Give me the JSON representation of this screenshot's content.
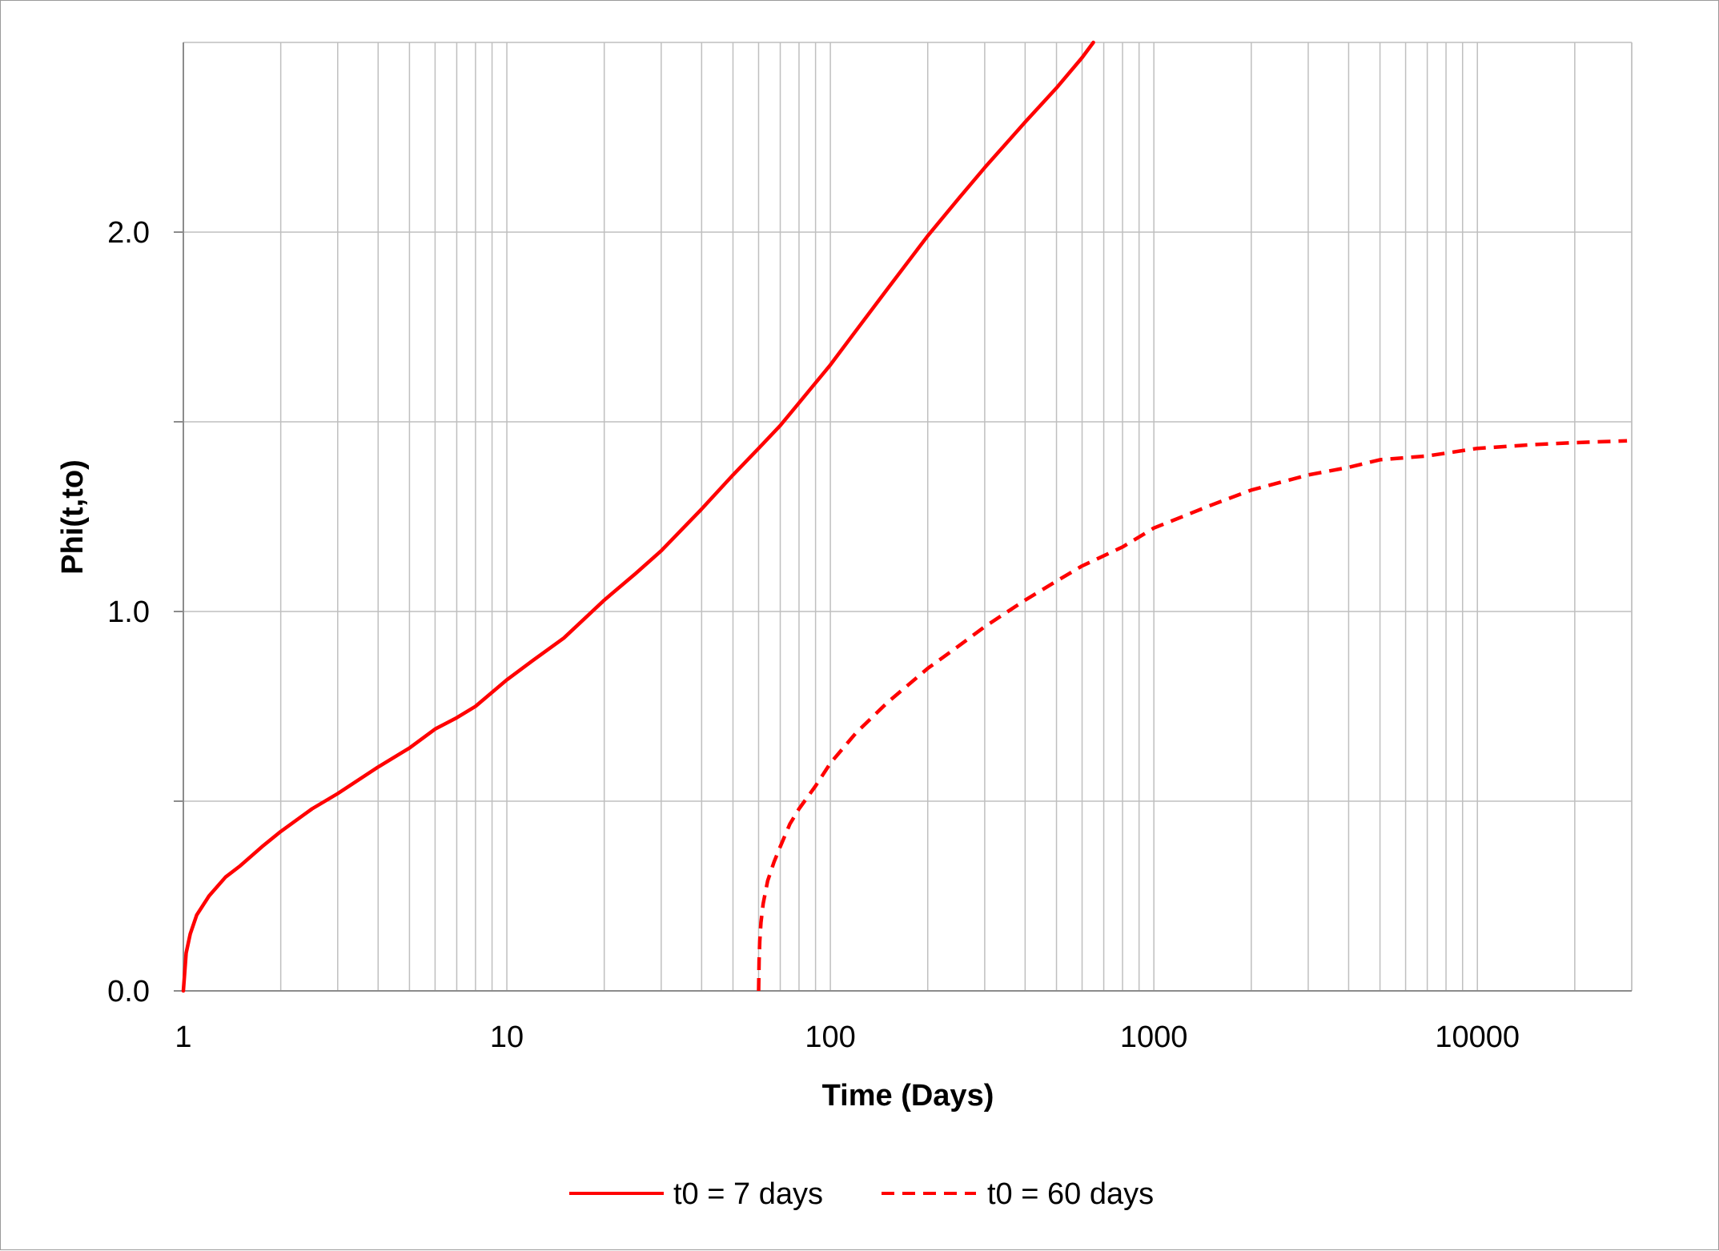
{
  "chart_data": {
    "type": "line",
    "title": "",
    "xlabel": "Time (Days)",
    "ylabel": "Phi(t,to)",
    "x_scale": "log",
    "xlim": [
      1,
      30000
    ],
    "ylim": [
      0,
      2.5
    ],
    "x_ticks": [
      1,
      10,
      100,
      1000,
      10000
    ],
    "x_tick_labels": [
      "1",
      "10",
      "100",
      "1000",
      "10000"
    ],
    "y_ticks": [
      0,
      0.5,
      1.0,
      1.5,
      2.0
    ],
    "y_tick_labels": [
      "0.0",
      "",
      "1.0",
      "",
      "2.0"
    ],
    "grid": true,
    "legend_position": "bottom",
    "colors": {
      "series": "#ff0000",
      "grid": "#bfbfbf",
      "axis": "#8c8c8c"
    },
    "series": [
      {
        "name": "t0 = 7 days",
        "line_style": "solid",
        "x": [
          1.0,
          1.02,
          1.05,
          1.1,
          1.2,
          1.35,
          1.5,
          1.75,
          2,
          2.5,
          3,
          4,
          5,
          6,
          7,
          8,
          10,
          12,
          15,
          20,
          25,
          30,
          40,
          50,
          60,
          70,
          80,
          100,
          120,
          150,
          200,
          250,
          300,
          400,
          500,
          600,
          650
        ],
        "y": [
          0.0,
          0.1,
          0.15,
          0.2,
          0.25,
          0.3,
          0.33,
          0.38,
          0.42,
          0.48,
          0.52,
          0.59,
          0.64,
          0.69,
          0.72,
          0.75,
          0.82,
          0.87,
          0.93,
          1.03,
          1.1,
          1.16,
          1.27,
          1.36,
          1.43,
          1.49,
          1.55,
          1.65,
          1.74,
          1.85,
          1.99,
          2.09,
          2.17,
          2.29,
          2.38,
          2.46,
          2.5
        ]
      },
      {
        "name": "t0 = 60 days",
        "line_style": "dashed",
        "x": [
          60,
          60.2,
          60.5,
          61,
          62,
          64,
          67,
          70,
          75,
          80,
          90,
          100,
          120,
          150,
          200,
          250,
          300,
          400,
          500,
          600,
          800,
          1000,
          1500,
          2000,
          3000,
          4000,
          5000,
          7000,
          10000,
          15000,
          20000,
          29000
        ],
        "y": [
          0.0,
          0.08,
          0.13,
          0.18,
          0.23,
          0.29,
          0.34,
          0.38,
          0.44,
          0.48,
          0.54,
          0.6,
          0.68,
          0.76,
          0.85,
          0.91,
          0.96,
          1.03,
          1.08,
          1.12,
          1.17,
          1.22,
          1.28,
          1.32,
          1.36,
          1.38,
          1.4,
          1.41,
          1.43,
          1.44,
          1.445,
          1.45
        ]
      }
    ]
  }
}
